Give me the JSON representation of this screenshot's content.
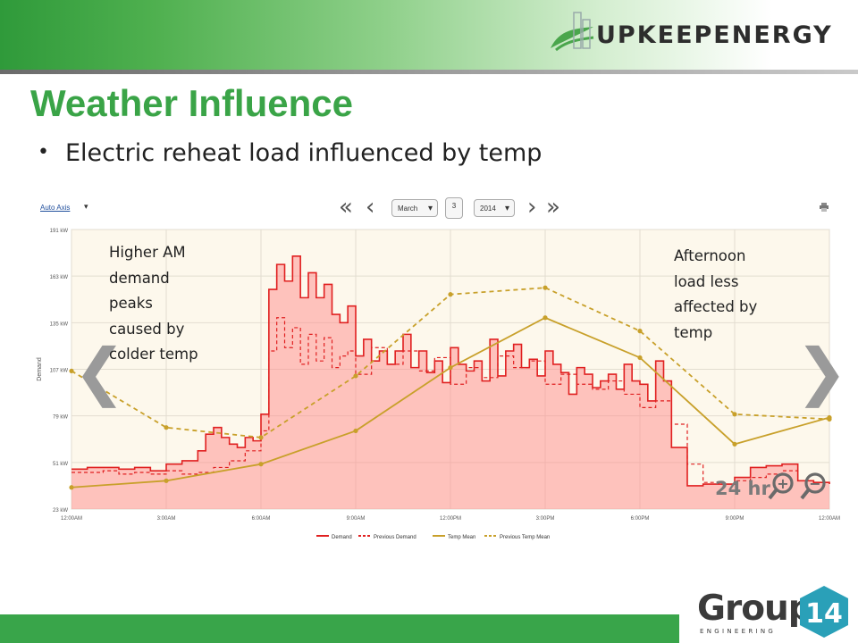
{
  "slide": {
    "title": "Weather Influence",
    "bullet": "Electric reheat load influenced by temp",
    "brand": "UPKEEPENERGY",
    "footer_logo": {
      "word": "Group",
      "number": "14",
      "sub": "ENGINEERING"
    },
    "colors": {
      "title_green": "#3aa447",
      "footer_bar": "#39a54a",
      "badge": "#2aa0b8"
    }
  },
  "toolbar": {
    "axis_link": "Auto Axis",
    "axis_caret": "▾",
    "month": "March",
    "day": "3",
    "year": "2014",
    "icons": [
      "double-left-icon",
      "left-icon",
      "right-icon",
      "double-right-icon",
      "print-icon"
    ]
  },
  "annotations": {
    "left": [
      "Higher AM",
      "demand",
      "peaks",
      "caused by",
      "colder temp"
    ],
    "right": [
      "Afternoon",
      "load less",
      "affected by",
      "temp"
    ]
  },
  "overlay": {
    "zoom_label": "24 hr"
  },
  "chart_data": {
    "type": "line",
    "ylabel": "Demand",
    "y_ticks": [
      "191 kW",
      "163 kW",
      "135 kW",
      "107 kW",
      "79 kW",
      "51 kW",
      "23 kW"
    ],
    "ylim": [
      23,
      191
    ],
    "x_ticks": [
      "12:00AM",
      "3:00AM",
      "6:00AM",
      "9:00AM",
      "12:00PM",
      "3:00PM",
      "6:00PM",
      "9:00PM",
      "12:00AM"
    ],
    "x_hours": [
      0,
      3,
      6,
      9,
      12,
      15,
      18,
      21,
      24
    ],
    "legend_position": "bottom",
    "series": [
      {
        "name": "Demand",
        "style": "area-solid",
        "color": "#e02020",
        "x": [
          0,
          0.5,
          1,
          1.5,
          2,
          2.5,
          3,
          3.5,
          4,
          4.25,
          4.5,
          4.75,
          5,
          5.25,
          5.5,
          5.75,
          6,
          6.25,
          6.5,
          6.75,
          7,
          7.25,
          7.5,
          7.75,
          8,
          8.25,
          8.5,
          8.75,
          9,
          9.25,
          9.5,
          9.75,
          10,
          10.25,
          10.5,
          10.75,
          11,
          11.25,
          11.5,
          11.75,
          12,
          12.25,
          12.5,
          12.75,
          13,
          13.25,
          13.5,
          13.75,
          14,
          14.25,
          14.5,
          14.75,
          15,
          15.25,
          15.5,
          15.75,
          16,
          16.25,
          16.5,
          16.75,
          17,
          17.25,
          17.5,
          17.75,
          18,
          18.25,
          18.5,
          18.75,
          19,
          19.5,
          20,
          20.5,
          21,
          21.5,
          22,
          22.5,
          23,
          23.5,
          24
        ],
        "values": [
          47,
          48,
          48,
          47,
          48,
          46,
          50,
          52,
          58,
          68,
          72,
          66,
          62,
          60,
          66,
          64,
          80,
          155,
          170,
          160,
          175,
          150,
          165,
          150,
          158,
          140,
          135,
          145,
          115,
          125,
          112,
          118,
          110,
          118,
          128,
          108,
          118,
          105,
          112,
          99,
          120,
          110,
          106,
          112,
          100,
          125,
          103,
          118,
          122,
          108,
          113,
          103,
          118,
          110,
          105,
          92,
          108,
          104,
          96,
          100,
          104,
          95,
          110,
          100,
          98,
          88,
          112,
          100,
          60,
          37,
          38,
          38,
          42,
          48,
          49,
          50,
          40,
          39,
          38
        ]
      },
      {
        "name": "Previous Demand",
        "style": "dashed",
        "color": "#e02020",
        "x": [
          0,
          0.5,
          1,
          1.5,
          2,
          2.5,
          3,
          3.5,
          4,
          4.5,
          5,
          5.5,
          6,
          6.25,
          6.5,
          6.75,
          7,
          7.25,
          7.5,
          7.75,
          8,
          8.25,
          8.5,
          8.75,
          9,
          9.5,
          10,
          10.5,
          11,
          11.5,
          12,
          12.5,
          13,
          13.5,
          14,
          14.5,
          15,
          15.5,
          16,
          16.5,
          17,
          17.5,
          18,
          18.5,
          19,
          19.5,
          20,
          20.5,
          21,
          21.5,
          22,
          22.5,
          23,
          23.5,
          24
        ],
        "values": [
          45,
          45,
          46,
          44,
          45,
          44,
          46,
          44,
          45,
          48,
          52,
          58,
          70,
          118,
          138,
          120,
          132,
          110,
          128,
          112,
          126,
          108,
          115,
          118,
          104,
          120,
          110,
          118,
          106,
          114,
          98,
          108,
          102,
          115,
          108,
          112,
          98,
          104,
          98,
          95,
          100,
          92,
          84,
          88,
          74,
          50,
          39,
          38,
          40,
          42,
          44,
          46,
          40,
          39,
          38
        ]
      },
      {
        "name": "Temp Mean",
        "style": "line-markers",
        "color": "#c8a02a",
        "x": [
          0,
          3,
          6,
          9,
          12,
          15,
          18,
          21,
          24
        ],
        "values": [
          36,
          40,
          50,
          70,
          108,
          138,
          114,
          62,
          78
        ]
      },
      {
        "name": "Previous Temp Mean",
        "style": "dashed-markers",
        "color": "#c8a02a",
        "x": [
          0,
          3,
          6,
          9,
          12,
          15,
          18,
          21,
          24
        ],
        "values": [
          106,
          72,
          66,
          103,
          152,
          156,
          130,
          80,
          77
        ]
      }
    ]
  }
}
